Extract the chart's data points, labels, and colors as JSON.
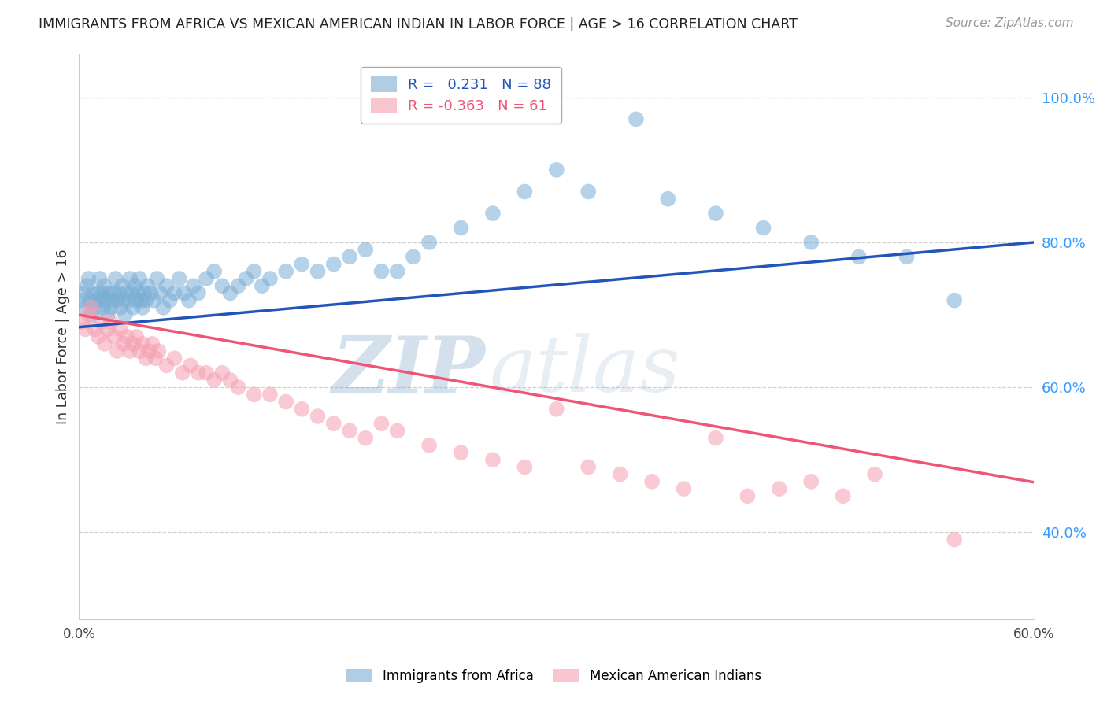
{
  "title": "IMMIGRANTS FROM AFRICA VS MEXICAN AMERICAN INDIAN IN LABOR FORCE | AGE > 16 CORRELATION CHART",
  "source": "Source: ZipAtlas.com",
  "ylabel_label": "In Labor Force | Age > 16",
  "x_min": 0.0,
  "x_max": 0.6,
  "y_min": 0.28,
  "y_max": 1.06,
  "x_ticks": [
    0.0,
    0.1,
    0.2,
    0.3,
    0.4,
    0.5,
    0.6
  ],
  "x_tick_labels": [
    "0.0%",
    "",
    "",
    "",
    "",
    "",
    "60.0%"
  ],
  "y_ticks": [
    0.4,
    0.6,
    0.8,
    1.0
  ],
  "y_tick_labels": [
    "40.0%",
    "60.0%",
    "80.0%",
    "100.0%"
  ],
  "blue_color": "#7aaed6",
  "pink_color": "#f5a0b0",
  "blue_line_color": "#2255bb",
  "pink_line_color": "#ee5577",
  "R_blue": 0.231,
  "N_blue": 88,
  "R_pink": -0.363,
  "N_pink": 61,
  "blue_intercept": 0.683,
  "blue_slope": 0.195,
  "pink_intercept": 0.7,
  "pink_slope": -0.385,
  "blue_scatter_x": [
    0.002,
    0.003,
    0.004,
    0.005,
    0.006,
    0.007,
    0.008,
    0.009,
    0.01,
    0.011,
    0.012,
    0.013,
    0.014,
    0.015,
    0.015,
    0.016,
    0.017,
    0.018,
    0.019,
    0.02,
    0.021,
    0.022,
    0.023,
    0.024,
    0.025,
    0.026,
    0.027,
    0.028,
    0.029,
    0.03,
    0.031,
    0.032,
    0.033,
    0.034,
    0.035,
    0.036,
    0.037,
    0.038,
    0.039,
    0.04,
    0.041,
    0.042,
    0.043,
    0.045,
    0.047,
    0.049,
    0.051,
    0.053,
    0.055,
    0.057,
    0.06,
    0.063,
    0.066,
    0.069,
    0.072,
    0.075,
    0.08,
    0.085,
    0.09,
    0.095,
    0.1,
    0.105,
    0.11,
    0.115,
    0.12,
    0.13,
    0.14,
    0.15,
    0.16,
    0.17,
    0.18,
    0.19,
    0.2,
    0.21,
    0.22,
    0.24,
    0.26,
    0.28,
    0.3,
    0.32,
    0.35,
    0.37,
    0.4,
    0.43,
    0.46,
    0.49,
    0.52,
    0.55
  ],
  "blue_scatter_y": [
    0.72,
    0.73,
    0.71,
    0.74,
    0.75,
    0.72,
    0.7,
    0.73,
    0.71,
    0.72,
    0.73,
    0.75,
    0.72,
    0.73,
    0.71,
    0.74,
    0.72,
    0.7,
    0.73,
    0.71,
    0.72,
    0.73,
    0.75,
    0.72,
    0.73,
    0.71,
    0.74,
    0.72,
    0.7,
    0.73,
    0.72,
    0.75,
    0.73,
    0.71,
    0.74,
    0.72,
    0.73,
    0.75,
    0.72,
    0.71,
    0.73,
    0.72,
    0.74,
    0.73,
    0.72,
    0.75,
    0.73,
    0.71,
    0.74,
    0.72,
    0.73,
    0.75,
    0.73,
    0.72,
    0.74,
    0.73,
    0.75,
    0.76,
    0.74,
    0.73,
    0.74,
    0.75,
    0.76,
    0.74,
    0.75,
    0.76,
    0.77,
    0.76,
    0.77,
    0.78,
    0.79,
    0.76,
    0.76,
    0.78,
    0.8,
    0.82,
    0.84,
    0.87,
    0.9,
    0.87,
    0.97,
    0.86,
    0.84,
    0.82,
    0.8,
    0.78,
    0.78,
    0.72
  ],
  "pink_scatter_x": [
    0.002,
    0.004,
    0.006,
    0.008,
    0.01,
    0.012,
    0.014,
    0.016,
    0.018,
    0.02,
    0.022,
    0.024,
    0.026,
    0.028,
    0.03,
    0.032,
    0.034,
    0.036,
    0.038,
    0.04,
    0.042,
    0.044,
    0.046,
    0.048,
    0.05,
    0.055,
    0.06,
    0.065,
    0.07,
    0.075,
    0.08,
    0.085,
    0.09,
    0.095,
    0.1,
    0.11,
    0.12,
    0.13,
    0.14,
    0.15,
    0.16,
    0.17,
    0.18,
    0.19,
    0.2,
    0.22,
    0.24,
    0.26,
    0.28,
    0.3,
    0.32,
    0.34,
    0.36,
    0.38,
    0.4,
    0.42,
    0.44,
    0.46,
    0.48,
    0.5,
    0.55
  ],
  "pink_scatter_y": [
    0.69,
    0.68,
    0.7,
    0.71,
    0.68,
    0.67,
    0.69,
    0.66,
    0.68,
    0.69,
    0.67,
    0.65,
    0.68,
    0.66,
    0.67,
    0.65,
    0.66,
    0.67,
    0.65,
    0.66,
    0.64,
    0.65,
    0.66,
    0.64,
    0.65,
    0.63,
    0.64,
    0.62,
    0.63,
    0.62,
    0.62,
    0.61,
    0.62,
    0.61,
    0.6,
    0.59,
    0.59,
    0.58,
    0.57,
    0.56,
    0.55,
    0.54,
    0.53,
    0.55,
    0.54,
    0.52,
    0.51,
    0.5,
    0.49,
    0.57,
    0.49,
    0.48,
    0.47,
    0.46,
    0.53,
    0.45,
    0.46,
    0.47,
    0.45,
    0.48,
    0.39
  ],
  "watermark_zip": "ZIP",
  "watermark_atlas": "atlas",
  "grid_color": "#cccccc",
  "background_color": "#ffffff"
}
